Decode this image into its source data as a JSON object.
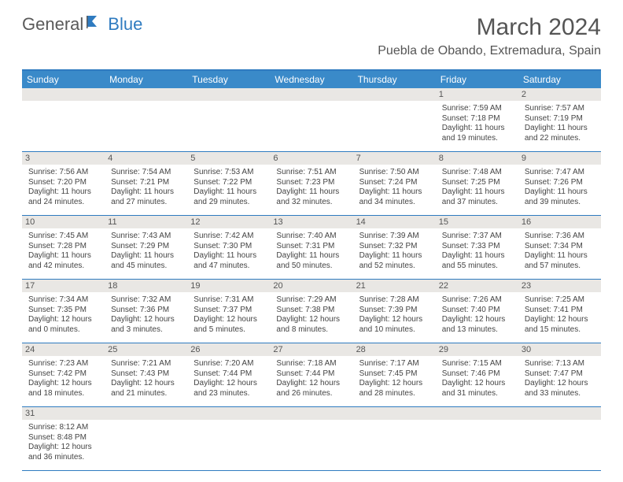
{
  "logo": {
    "text1": "General",
    "text2": "Blue"
  },
  "title": "March 2024",
  "location": "Puebla de Obando, Extremadura, Spain",
  "colors": {
    "header_bg": "#3a8ac9",
    "border": "#2f7bc0",
    "daynum_bg": "#e9e7e4",
    "text": "#555555"
  },
  "weekdays": [
    "Sunday",
    "Monday",
    "Tuesday",
    "Wednesday",
    "Thursday",
    "Friday",
    "Saturday"
  ],
  "weeks": [
    [
      null,
      null,
      null,
      null,
      null,
      {
        "n": "1",
        "sr": "7:59 AM",
        "ss": "7:18 PM",
        "dl": "11 hours and 19 minutes."
      },
      {
        "n": "2",
        "sr": "7:57 AM",
        "ss": "7:19 PM",
        "dl": "11 hours and 22 minutes."
      }
    ],
    [
      {
        "n": "3",
        "sr": "7:56 AM",
        "ss": "7:20 PM",
        "dl": "11 hours and 24 minutes."
      },
      {
        "n": "4",
        "sr": "7:54 AM",
        "ss": "7:21 PM",
        "dl": "11 hours and 27 minutes."
      },
      {
        "n": "5",
        "sr": "7:53 AM",
        "ss": "7:22 PM",
        "dl": "11 hours and 29 minutes."
      },
      {
        "n": "6",
        "sr": "7:51 AM",
        "ss": "7:23 PM",
        "dl": "11 hours and 32 minutes."
      },
      {
        "n": "7",
        "sr": "7:50 AM",
        "ss": "7:24 PM",
        "dl": "11 hours and 34 minutes."
      },
      {
        "n": "8",
        "sr": "7:48 AM",
        "ss": "7:25 PM",
        "dl": "11 hours and 37 minutes."
      },
      {
        "n": "9",
        "sr": "7:47 AM",
        "ss": "7:26 PM",
        "dl": "11 hours and 39 minutes."
      }
    ],
    [
      {
        "n": "10",
        "sr": "7:45 AM",
        "ss": "7:28 PM",
        "dl": "11 hours and 42 minutes."
      },
      {
        "n": "11",
        "sr": "7:43 AM",
        "ss": "7:29 PM",
        "dl": "11 hours and 45 minutes."
      },
      {
        "n": "12",
        "sr": "7:42 AM",
        "ss": "7:30 PM",
        "dl": "11 hours and 47 minutes."
      },
      {
        "n": "13",
        "sr": "7:40 AM",
        "ss": "7:31 PM",
        "dl": "11 hours and 50 minutes."
      },
      {
        "n": "14",
        "sr": "7:39 AM",
        "ss": "7:32 PM",
        "dl": "11 hours and 52 minutes."
      },
      {
        "n": "15",
        "sr": "7:37 AM",
        "ss": "7:33 PM",
        "dl": "11 hours and 55 minutes."
      },
      {
        "n": "16",
        "sr": "7:36 AM",
        "ss": "7:34 PM",
        "dl": "11 hours and 57 minutes."
      }
    ],
    [
      {
        "n": "17",
        "sr": "7:34 AM",
        "ss": "7:35 PM",
        "dl": "12 hours and 0 minutes."
      },
      {
        "n": "18",
        "sr": "7:32 AM",
        "ss": "7:36 PM",
        "dl": "12 hours and 3 minutes."
      },
      {
        "n": "19",
        "sr": "7:31 AM",
        "ss": "7:37 PM",
        "dl": "12 hours and 5 minutes."
      },
      {
        "n": "20",
        "sr": "7:29 AM",
        "ss": "7:38 PM",
        "dl": "12 hours and 8 minutes."
      },
      {
        "n": "21",
        "sr": "7:28 AM",
        "ss": "7:39 PM",
        "dl": "12 hours and 10 minutes."
      },
      {
        "n": "22",
        "sr": "7:26 AM",
        "ss": "7:40 PM",
        "dl": "12 hours and 13 minutes."
      },
      {
        "n": "23",
        "sr": "7:25 AM",
        "ss": "7:41 PM",
        "dl": "12 hours and 15 minutes."
      }
    ],
    [
      {
        "n": "24",
        "sr": "7:23 AM",
        "ss": "7:42 PM",
        "dl": "12 hours and 18 minutes."
      },
      {
        "n": "25",
        "sr": "7:21 AM",
        "ss": "7:43 PM",
        "dl": "12 hours and 21 minutes."
      },
      {
        "n": "26",
        "sr": "7:20 AM",
        "ss": "7:44 PM",
        "dl": "12 hours and 23 minutes."
      },
      {
        "n": "27",
        "sr": "7:18 AM",
        "ss": "7:44 PM",
        "dl": "12 hours and 26 minutes."
      },
      {
        "n": "28",
        "sr": "7:17 AM",
        "ss": "7:45 PM",
        "dl": "12 hours and 28 minutes."
      },
      {
        "n": "29",
        "sr": "7:15 AM",
        "ss": "7:46 PM",
        "dl": "12 hours and 31 minutes."
      },
      {
        "n": "30",
        "sr": "7:13 AM",
        "ss": "7:47 PM",
        "dl": "12 hours and 33 minutes."
      }
    ],
    [
      {
        "n": "31",
        "sr": "8:12 AM",
        "ss": "8:48 PM",
        "dl": "12 hours and 36 minutes."
      },
      null,
      null,
      null,
      null,
      null,
      null
    ]
  ],
  "labels": {
    "sunrise": "Sunrise:",
    "sunset": "Sunset:",
    "daylight": "Daylight:"
  }
}
